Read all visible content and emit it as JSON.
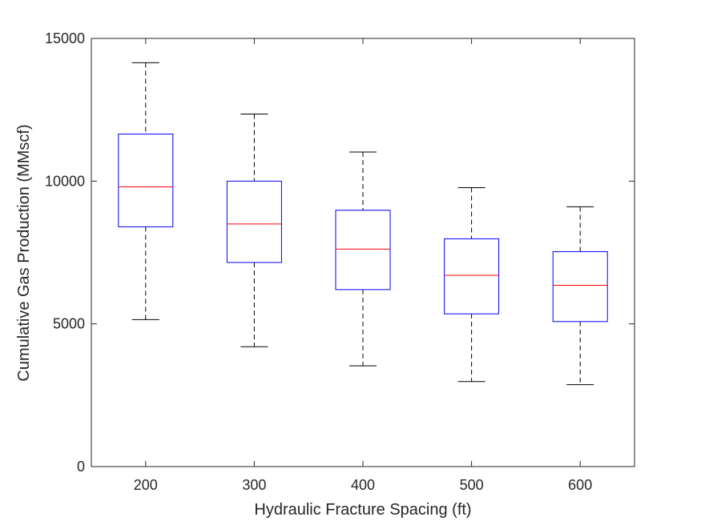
{
  "chart_data": {
    "type": "box",
    "title": "",
    "xlabel": "Hydraulic Fracture Spacing (ft)",
    "ylabel": "Cumulative Gas Production (MMscf)",
    "ylim": [
      0,
      15000
    ],
    "yticks": [
      0,
      5000,
      10000,
      15000
    ],
    "categories": [
      "200",
      "300",
      "400",
      "500",
      "600"
    ],
    "boxes": [
      {
        "category": "200",
        "whisker_low": 5150,
        "q1": 8400,
        "median": 9800,
        "q3": 11650,
        "whisker_high": 14150
      },
      {
        "category": "300",
        "whisker_low": 4200,
        "q1": 7150,
        "median": 8500,
        "q3": 10000,
        "whisker_high": 12350
      },
      {
        "category": "400",
        "whisker_low": 3530,
        "q1": 6200,
        "median": 7620,
        "q3": 8980,
        "whisker_high": 11020
      },
      {
        "category": "500",
        "whisker_low": 2980,
        "q1": 5350,
        "median": 6700,
        "q3": 7980,
        "whisker_high": 9770
      },
      {
        "category": "600",
        "whisker_low": 2870,
        "q1": 5080,
        "median": 6350,
        "q3": 7530,
        "whisker_high": 9100
      }
    ],
    "colors": {
      "box": "#0000ff",
      "median": "#ff0000",
      "whisker": "#000000",
      "axis": "#262626"
    }
  }
}
